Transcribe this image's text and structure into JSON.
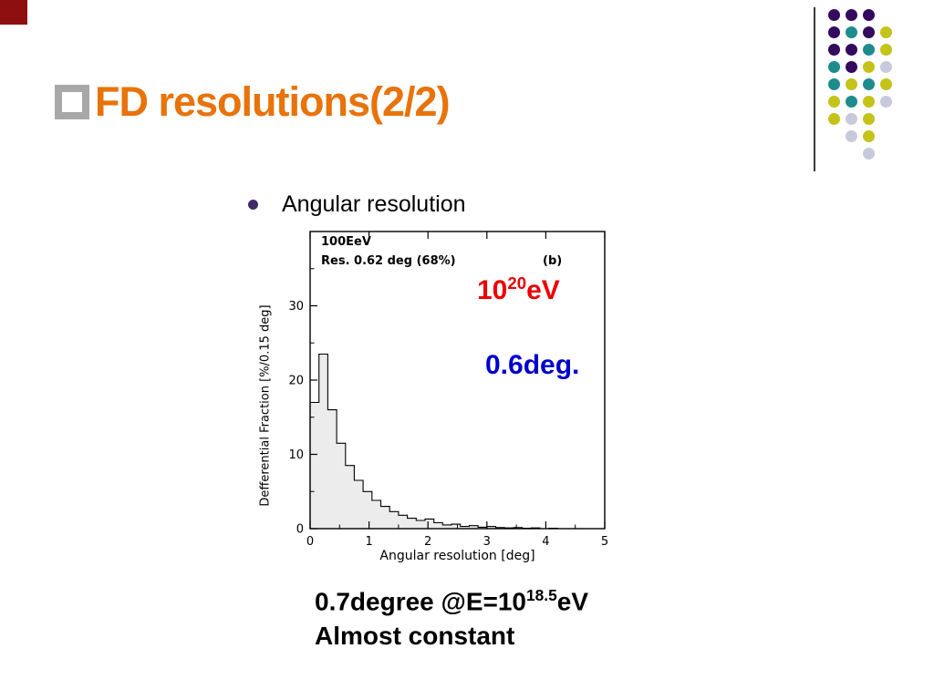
{
  "slide": {
    "title": "FD resolutions(2/2)",
    "bullet": "Angular resolution",
    "notes": {
      "line1_pre": "0.7degree @E=10",
      "line1_sup": "18.5",
      "line1_post": "eV",
      "line2": "Almost constant"
    }
  },
  "colors": {
    "title_orange": "#E8730B",
    "corner_red": "#8E0F0F",
    "energy_red": "#EE0000",
    "deg_blue": "#0000CD",
    "bullet_dot": "#3F2A66",
    "title_square_gray": "#A8A8A8",
    "hist_fill": "#ECECEC"
  },
  "decor": {
    "palette": {
      "p": "#330A5E",
      "t": "#1C8C8C",
      "y": "#C3C31A",
      "g": "#C9C9DE"
    },
    "grid": [
      [
        "p",
        "p",
        "p",
        null
      ],
      [
        "p",
        "t",
        "p",
        "y"
      ],
      [
        "p",
        "p",
        "t",
        "y"
      ],
      [
        "t",
        "p",
        "y",
        "g"
      ],
      [
        "t",
        "y",
        "t",
        "y"
      ],
      [
        "y",
        "t",
        "y",
        "g"
      ],
      [
        "y",
        "g",
        "y",
        null
      ],
      [
        null,
        "g",
        "y",
        null
      ],
      [
        null,
        null,
        "g",
        null
      ]
    ]
  },
  "chart_data": {
    "type": "histogram",
    "title": "",
    "xlabel": "Angular resolution [deg]",
    "ylabel": "Defferential Fraction [%/0.15 deg]",
    "xlim": [
      0,
      5
    ],
    "ylim": [
      0,
      40
    ],
    "x_ticks": [
      0,
      1,
      2,
      3,
      4,
      5
    ],
    "y_ticks": [
      0,
      10,
      20,
      30
    ],
    "bin_start": 0,
    "bin_width": 0.15,
    "values": [
      17,
      23.5,
      16,
      11.5,
      8.5,
      6.5,
      5,
      3.8,
      3,
      2.3,
      1.8,
      1.4,
      1.1,
      1.3,
      0.8,
      0.5,
      0.6,
      0.3,
      0.4,
      0.2,
      0.3,
      0.15,
      0.1,
      0.15,
      0.05,
      0.1,
      0,
      0.05,
      0,
      0
    ],
    "annotations": {
      "top_left_line1": "100EeV",
      "top_left_line2": "Res. 0.62 deg (68%)",
      "panel": "(b)",
      "energy_pre": "10",
      "energy_sup": "20",
      "energy_post": "eV",
      "resolution_highlight": "0.6deg."
    }
  }
}
